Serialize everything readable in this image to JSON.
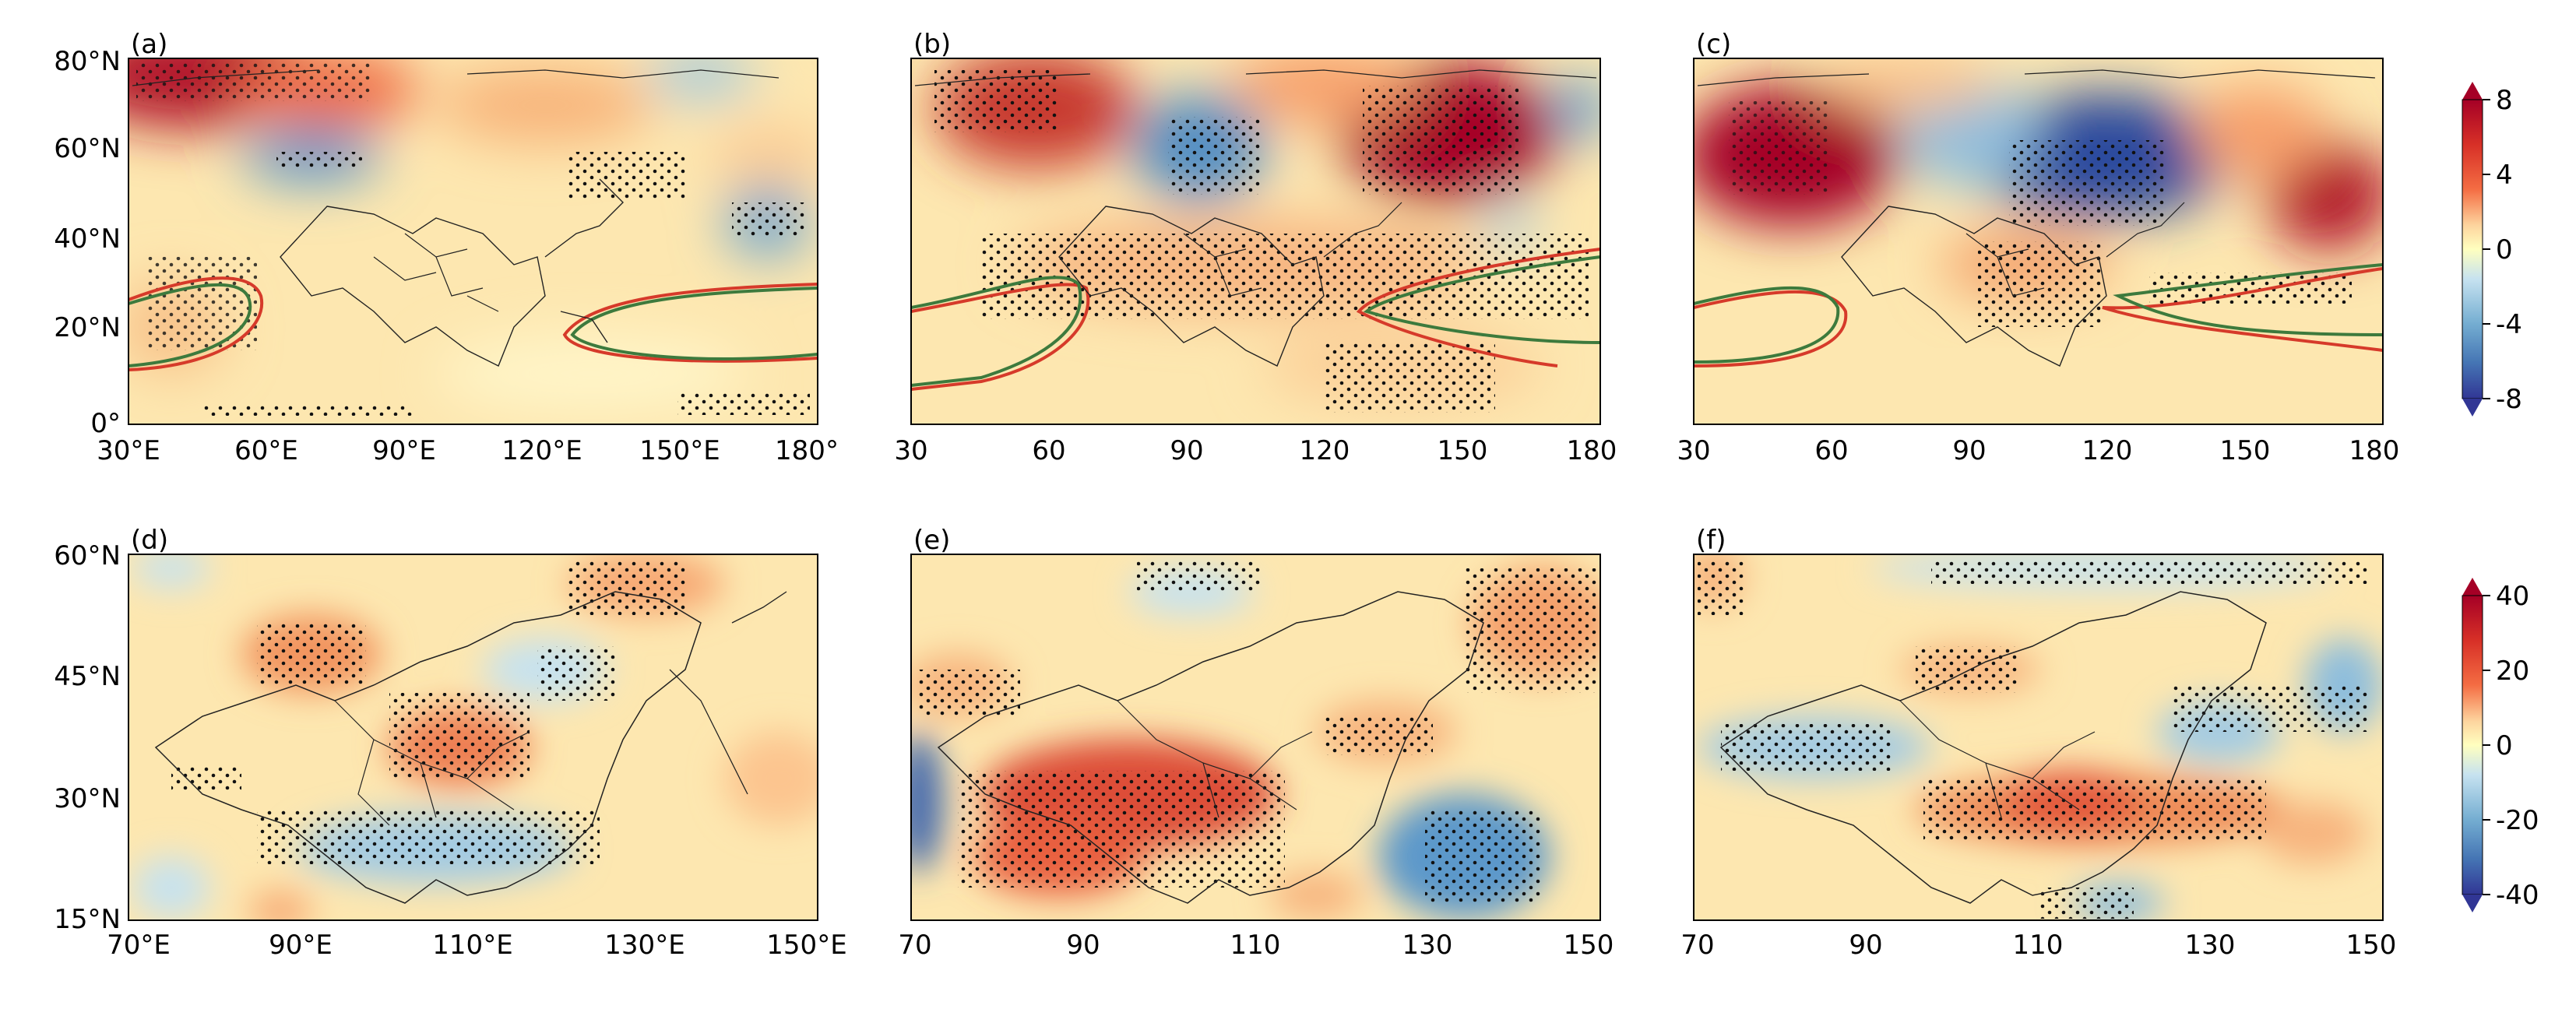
{
  "panels": [
    {
      "label": "(a)",
      "row": 0,
      "col": 0,
      "xticks": [
        "30°E",
        "60°E",
        "90°E",
        "120°E",
        "150°E",
        "180°"
      ],
      "yticks": [
        "80°N",
        "60°N",
        "40°N",
        "20°N",
        "0°"
      ]
    },
    {
      "label": "(b)",
      "row": 0,
      "col": 1,
      "xticks": [
        "30",
        "60",
        "90",
        "120",
        "150",
        "180"
      ],
      "yticks": []
    },
    {
      "label": "(c)",
      "row": 0,
      "col": 2,
      "xticks": [
        "30",
        "60",
        "90",
        "120",
        "150",
        "180"
      ],
      "yticks": []
    },
    {
      "label": "(d)",
      "row": 1,
      "col": 0,
      "xticks": [
        "70°E",
        "90°E",
        "110°E",
        "130°E",
        "150°E"
      ],
      "yticks": [
        "60°N",
        "45°N",
        "30°N",
        "15°N"
      ]
    },
    {
      "label": "(e)",
      "row": 1,
      "col": 1,
      "xticks": [
        "70",
        "90",
        "110",
        "130",
        "150"
      ],
      "yticks": []
    },
    {
      "label": "(f)",
      "row": 1,
      "col": 2,
      "xticks": [
        "70",
        "90",
        "110",
        "130",
        "150"
      ],
      "yticks": []
    }
  ],
  "colorbars": [
    {
      "row": 0,
      "ticks": [
        "8",
        "4",
        "0",
        "-4",
        "-8"
      ],
      "range": [
        -8,
        8
      ]
    },
    {
      "row": 1,
      "ticks": [
        "40",
        "20",
        "0",
        "-20",
        "-40"
      ],
      "range": [
        -40,
        40
      ]
    }
  ],
  "colors": {
    "strong_pos": "#a50026",
    "pos": "#f46d43",
    "weak_pos": "#fdd49e",
    "neutral": "#ffffbf",
    "weak_neg": "#c6e2f0",
    "neg": "#4a8cc2",
    "strong_neg": "#24348e",
    "contour_red": "#d63a2a",
    "contour_green": "#3d7a3d"
  }
}
